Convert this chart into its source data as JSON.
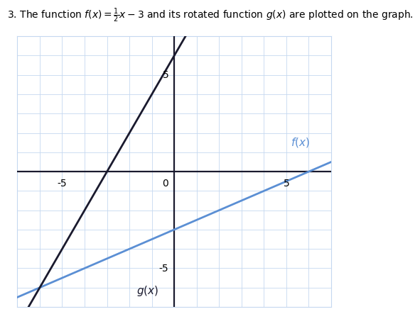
{
  "title": "3. The function $f(x) = \\frac{1}{2}x - 3$ and its rotated function $g(x)$ are plotted on the graph.",
  "xlim": [
    -7,
    7
  ],
  "ylim": [
    -7,
    7
  ],
  "xticks": [
    -5,
    0,
    5
  ],
  "yticks": [
    -5,
    5
  ],
  "fx_slope": 0.5,
  "fx_intercept": -3,
  "gx_slope": 2,
  "gx_intercept": 6,
  "fx_color": "#5b8fd4",
  "gx_color": "#1a1a2e",
  "fx_label": "$f(x)$",
  "gx_label": "$g(x)$",
  "background_color": "#ffffff",
  "grid_color": "#c5d8f0",
  "axis_color": "#1a1a2e",
  "grid_linewidth": 0.6,
  "axis_linewidth": 1.6,
  "line_linewidth": 2.0
}
